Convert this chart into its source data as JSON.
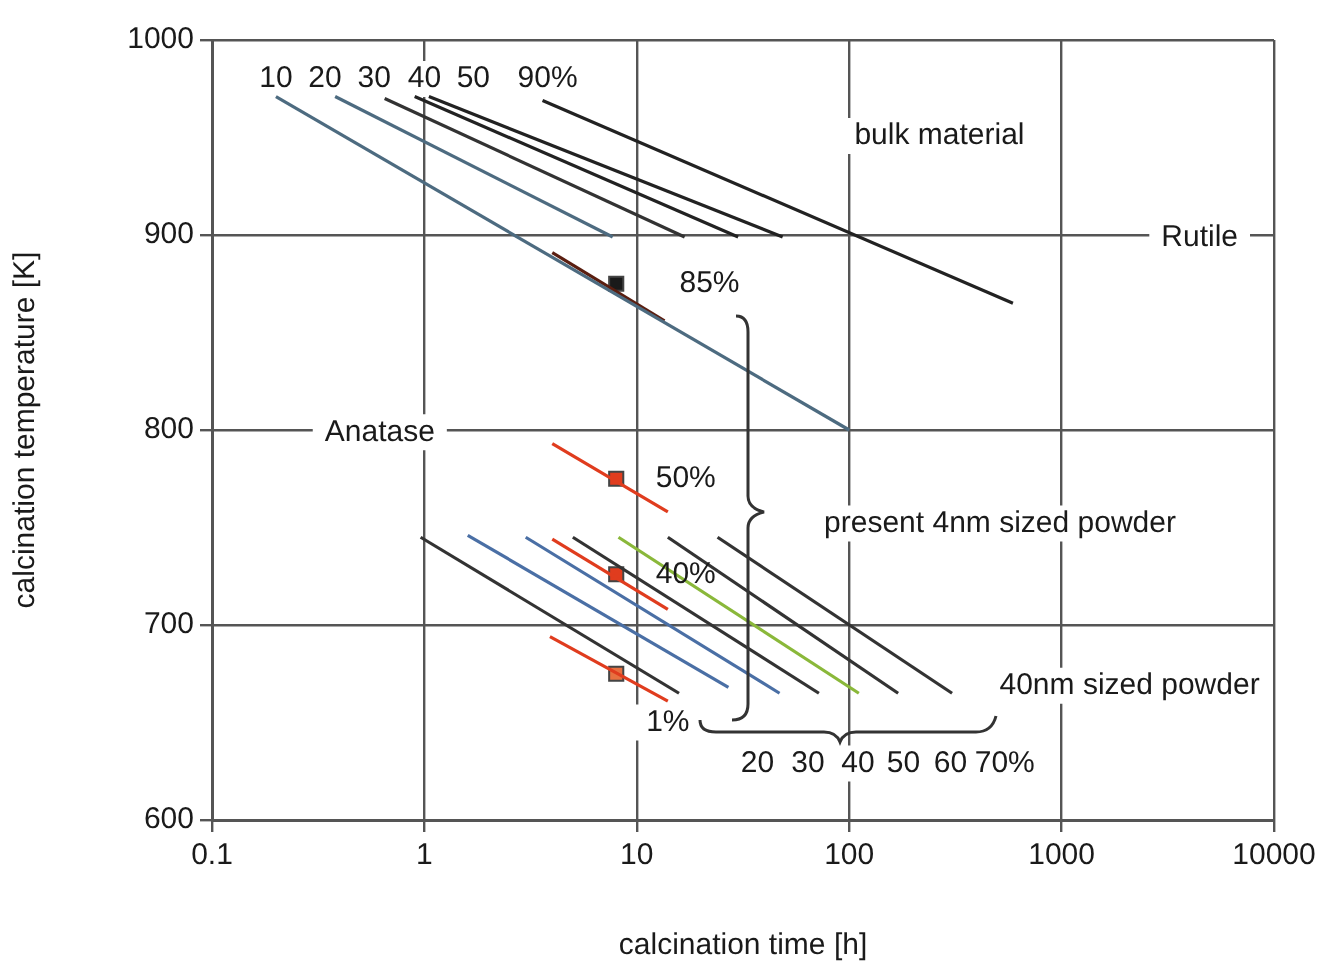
{
  "chart_data": {
    "type": "line",
    "xlabel": "calcination time [h]",
    "ylabel": "calcination temperature [K]",
    "log": "x",
    "grid": true,
    "legend": false,
    "xlim": [
      0.1,
      10000
    ],
    "xticks": [
      0.1,
      1,
      10,
      100,
      1000,
      10000
    ],
    "ylim": [
      600,
      1000
    ],
    "yticks": [
      600,
      700,
      800,
      900,
      1000
    ],
    "series": [
      {
        "color": "#4d6b80",
        "x": [
          0.2,
          100
        ],
        "values": [
          971,
          800
        ]
      },
      {
        "color": "#4d6b80",
        "x": [
          0.38,
          7.7
        ],
        "values": [
          971,
          899
        ]
      },
      {
        "color": "#333333",
        "x": [
          0.65,
          16.8
        ],
        "values": [
          970,
          899
        ]
      },
      {
        "color": "#222222",
        "x": [
          0.9,
          30
        ],
        "values": [
          971,
          899
        ]
      },
      {
        "color": "#222222",
        "x": [
          1.05,
          48.6
        ],
        "values": [
          971,
          899
        ]
      },
      {
        "color": "#222222",
        "x": [
          3.6,
          590
        ],
        "values": [
          969,
          865
        ]
      },
      {
        "color": "#5a1e10",
        "x": [
          4,
          13.5
        ],
        "values": [
          891,
          856
        ]
      },
      {
        "color": "#333333",
        "x": [
          0.96,
          15.8
        ],
        "values": [
          745,
          665
        ]
      },
      {
        "color": "#4a6fa5",
        "x": [
          1.6,
          27
        ],
        "values": [
          746,
          668
        ]
      },
      {
        "color": "#4a6fa5",
        "x": [
          3,
          47
        ],
        "values": [
          745,
          665
        ]
      },
      {
        "color": "#333333",
        "x": [
          5,
          72
        ],
        "values": [
          745,
          665
        ]
      },
      {
        "color": "#8ab83a",
        "x": [
          8.2,
          111
        ],
        "values": [
          745,
          665
        ]
      },
      {
        "color": "#333333",
        "x": [
          14,
          170
        ],
        "values": [
          745,
          665
        ]
      },
      {
        "color": "#333333",
        "x": [
          24,
          305
        ],
        "values": [
          745,
          665
        ]
      },
      {
        "color": "#e03c1e",
        "x": [
          4,
          14
        ],
        "values": [
          793,
          758
        ]
      },
      {
        "color": "#e03c1e",
        "x": [
          4,
          14
        ],
        "values": [
          744,
          708
        ]
      },
      {
        "color": "#e03c1e",
        "x": [
          3.9,
          14
        ],
        "values": [
          694,
          661
        ]
      },
      {
        "type": "scatter",
        "marker": "square",
        "x": [
          8,
          8,
          8,
          8
        ],
        "values": [
          875,
          775,
          726,
          675
        ],
        "colors": [
          "#1a1a1a",
          "#e03c1e",
          "#e03c1e",
          "#e87040"
        ]
      }
    ],
    "annotations": [
      {
        "text": "10",
        "x": 0.2,
        "y": 980
      },
      {
        "text": "20",
        "x": 0.34,
        "y": 980
      },
      {
        "text": "30",
        "x": 0.58,
        "y": 980
      },
      {
        "text": "40",
        "x": 1.0,
        "y": 980
      },
      {
        "text": "50",
        "x": 1.7,
        "y": 980
      },
      {
        "text": "90%",
        "x": 3.8,
        "y": 980
      },
      "bulk material",
      "Rutile",
      "Anatase",
      {
        "text": "85%",
        "x": 22,
        "y": 875
      },
      {
        "text": "50%",
        "x": 17,
        "y": 775
      },
      {
        "text": "40%",
        "x": 17,
        "y": 726
      },
      {
        "text": "1%",
        "x": 14,
        "y": 650
      },
      "present 4nm sized powder",
      "40nm sized powder",
      {
        "text": "20",
        "x": 37,
        "y": 629
      },
      {
        "text": "30",
        "x": 64,
        "y": 629
      },
      {
        "text": "40",
        "x": 110,
        "y": 629
      },
      {
        "text": "50",
        "x": 180,
        "y": 629
      },
      {
        "text": "60",
        "x": 300,
        "y": 629
      },
      {
        "text": "70%",
        "x": 540,
        "y": 629
      }
    ]
  }
}
